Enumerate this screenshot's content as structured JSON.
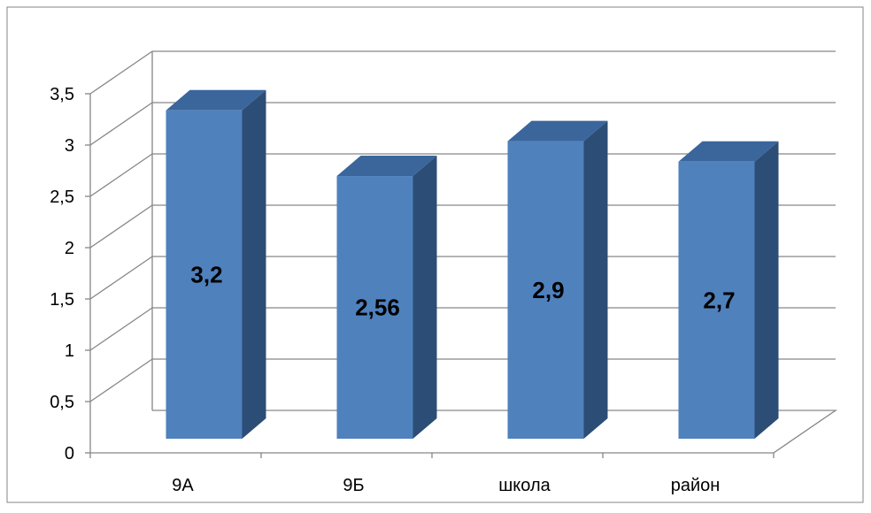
{
  "chart_data": {
    "type": "bar",
    "title": "",
    "xlabel": "",
    "ylabel": "",
    "categories": [
      "9А",
      "9Б",
      "школа",
      "район"
    ],
    "values": [
      3.2,
      2.56,
      2.9,
      2.7
    ],
    "data_labels": [
      "3,2",
      "2,56",
      "2,9",
      "2,7"
    ],
    "yticks": [
      "0",
      "0,5",
      "1",
      "1,5",
      "2",
      "2,5",
      "3",
      "3,5"
    ],
    "ylim": [
      0,
      3.5
    ],
    "grid": true,
    "legend": "none",
    "bar_style": "3d",
    "colors": {
      "bar_front": "#4f81bd",
      "bar_side": "#2c4d75",
      "bar_top": "#3a669c",
      "grid": "#868686",
      "frame": "#868686"
    }
  }
}
